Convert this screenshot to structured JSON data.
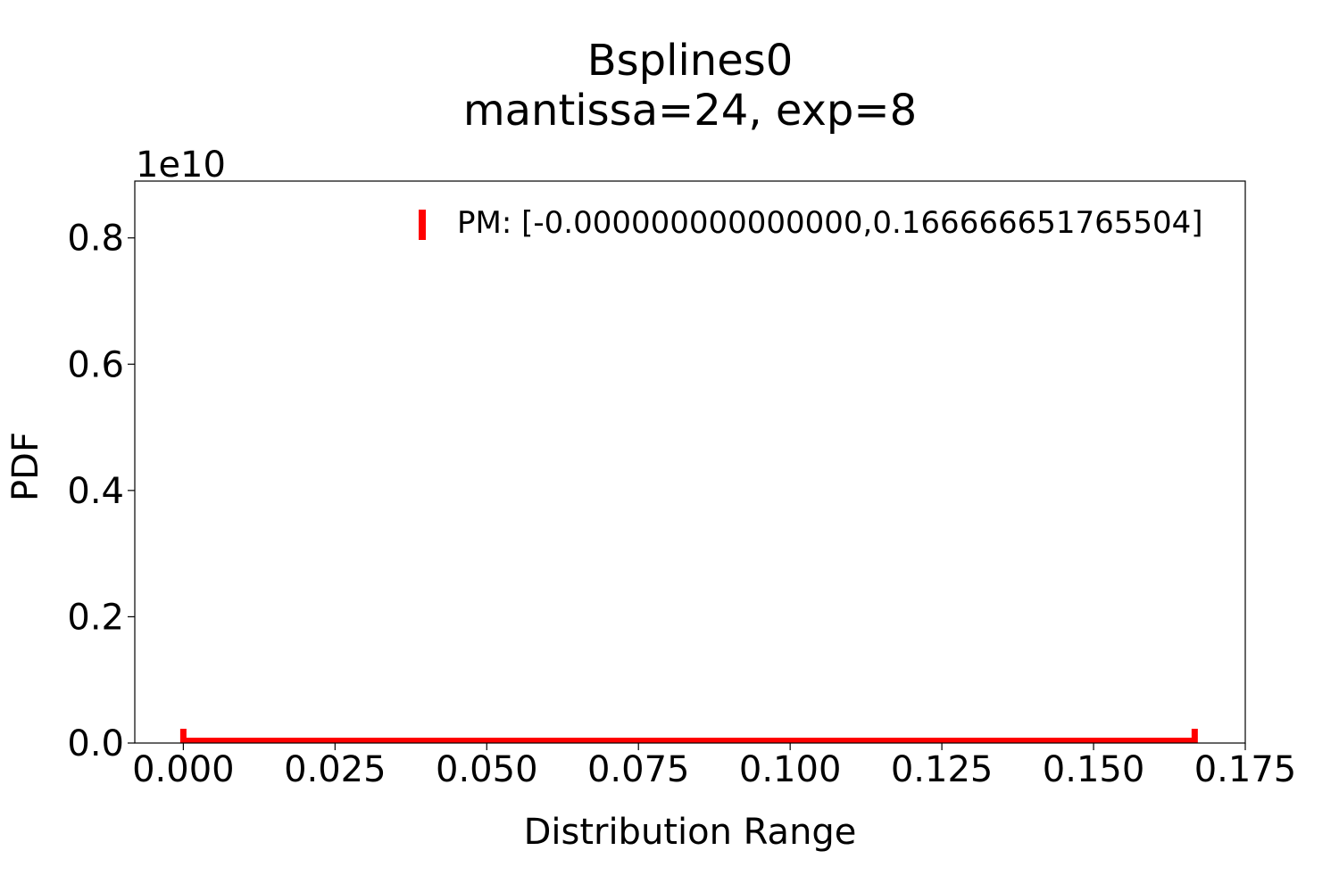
{
  "chart_data": {
    "type": "line",
    "title_line1": "Bsplines0",
    "title_line2": "mantissa=24, exp=8",
    "xlabel": "Distribution Range",
    "ylabel": "PDF",
    "y_offset_text": "1e10",
    "xlim": [
      -0.008,
      0.175
    ],
    "ylim": [
      0,
      0.89
    ],
    "x_ticks": [
      0.0,
      0.025,
      0.05,
      0.075,
      0.1,
      0.125,
      0.15,
      0.175
    ],
    "x_tick_labels": [
      "0.000",
      "0.025",
      "0.050",
      "0.075",
      "0.100",
      "0.125",
      "0.150",
      "0.175"
    ],
    "y_ticks": [
      0.0,
      0.2,
      0.4,
      0.6,
      0.8
    ],
    "y_tick_labels": [
      "0.0",
      "0.2",
      "0.4",
      "0.6",
      "0.8"
    ],
    "grid": false,
    "legend_position": "upper-right",
    "series": [
      {
        "name": "PM: [-0.000000000000000,0.166666651765504]",
        "color": "#ff0000",
        "x_range": [
          0.0,
          0.166666651765504
        ],
        "y_value": 0.0
      }
    ]
  }
}
